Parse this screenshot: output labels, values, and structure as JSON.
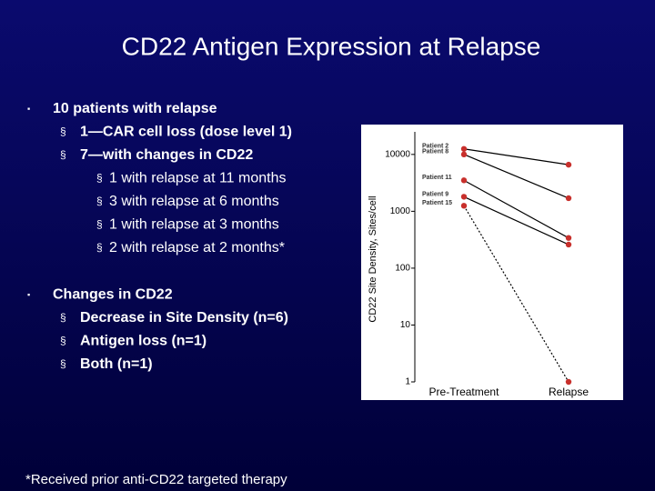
{
  "title": "CD22 Antigen Expression at Relapse",
  "bullets": [
    {
      "text": "10  patients with relapse",
      "children": [
        {
          "text": "1—CAR cell loss (dose level 1)"
        },
        {
          "text": "7—with changes in CD22",
          "children": [
            {
              "text": "1 with relapse at 11 months"
            },
            {
              "text": "3 with relapse at 6 months"
            },
            {
              "text": "1 with relapse at 3 months"
            },
            {
              "text": "2 with relapse at 2 months*"
            }
          ]
        }
      ]
    },
    {
      "text": "Changes in CD22",
      "children": [
        {
          "text": "Decrease in Site Density (n=6)"
        },
        {
          "text": "Antigen loss (n=1)"
        },
        {
          "text": "Both (n=1)"
        }
      ]
    }
  ],
  "footnote": "*Received prior anti-CD22 targeted therapy",
  "chart_data": {
    "type": "line",
    "y_label": "CD22 Site Density, Sites/cell",
    "categories": [
      "Pre-Treatment",
      "Relapse"
    ],
    "log_scale": true,
    "ylim": [
      1,
      30000
    ],
    "yticks": [
      1,
      10,
      100,
      1000,
      10000
    ],
    "line_color": "#000000",
    "marker_color": "#c8302c",
    "series": [
      {
        "name": "Patient 2",
        "values": [
          12500,
          6600
        ]
      },
      {
        "name": "Patient 8",
        "values": [
          10000,
          1700
        ]
      },
      {
        "name": "Patient 11",
        "values": [
          3500,
          340
        ]
      },
      {
        "name": "Patient 9",
        "values": [
          1800,
          260
        ]
      },
      {
        "name": "Patient 15",
        "values": [
          1250,
          1
        ],
        "dotted": true
      }
    ]
  }
}
